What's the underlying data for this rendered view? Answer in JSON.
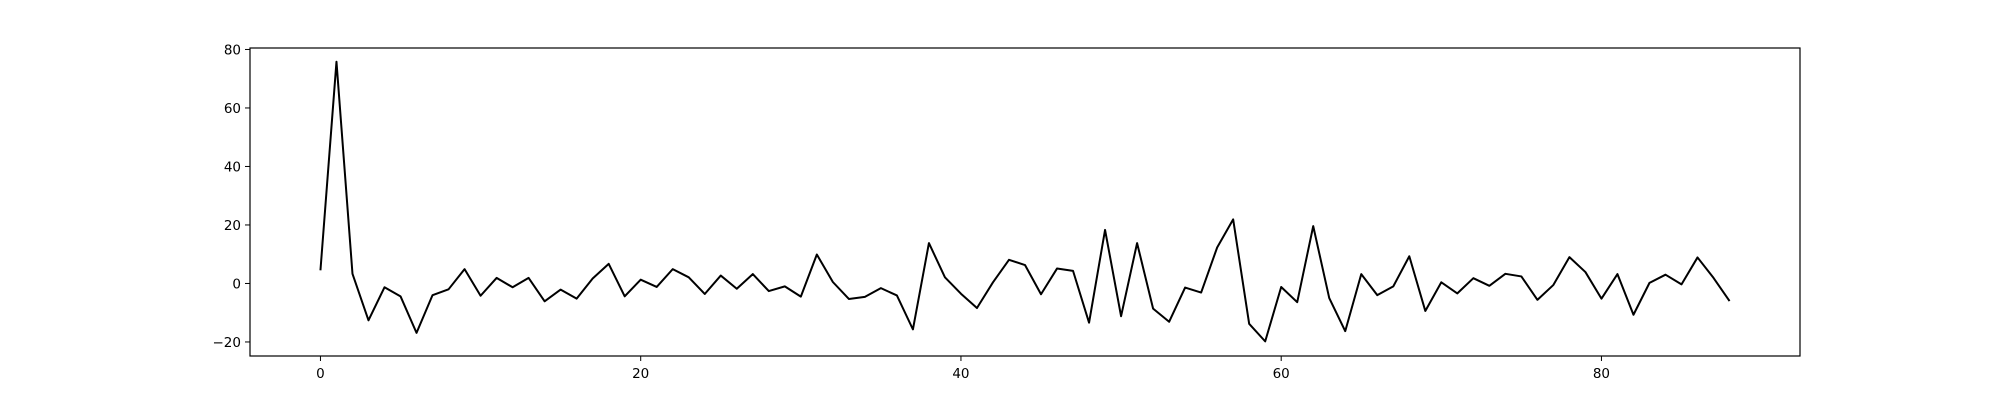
{
  "chart_data": {
    "type": "line",
    "title": "",
    "xlabel": "",
    "ylabel": "",
    "xlim": [
      -4.4,
      92.4
    ],
    "ylim": [
      -24.8,
      80.5
    ],
    "x_ticks": [
      0,
      20,
      40,
      60,
      80
    ],
    "y_ticks": [
      -20,
      0,
      20,
      40,
      60,
      80
    ],
    "x_tick_labels": [
      "0",
      "20",
      "40",
      "60",
      "80"
    ],
    "y_tick_labels": [
      "−20",
      "0",
      "20",
      "40",
      "60",
      "80"
    ],
    "grid": false,
    "legend": "none",
    "line_color": "#000000",
    "series": [
      {
        "x": [
          0,
          1,
          2,
          3,
          4,
          5,
          6,
          7,
          8,
          9,
          10,
          11,
          12,
          13,
          14,
          15,
          16,
          17,
          18,
          19,
          20,
          21,
          22,
          23,
          24,
          25,
          26,
          27,
          28,
          29,
          30,
          31,
          32,
          33,
          34,
          35,
          36,
          37,
          38,
          39,
          40,
          41,
          42,
          43,
          44,
          45,
          46,
          47,
          48,
          49,
          50,
          51,
          52,
          53,
          54,
          55,
          56,
          57,
          58,
          59,
          60,
          61,
          62,
          63,
          64,
          65,
          66,
          67,
          68,
          69,
          70,
          71,
          72,
          73,
          74,
          75,
          76,
          77,
          78,
          79,
          80,
          81,
          82,
          83,
          84,
          85,
          86,
          87,
          88
        ],
        "values": [
          4.5,
          75.8,
          3.3,
          -12.6,
          -1.3,
          -4.4,
          -16.9,
          -4.0,
          -2.0,
          4.9,
          -4.2,
          1.9,
          -1.3,
          1.9,
          -6.1,
          -2.1,
          -5.2,
          1.7,
          6.7,
          -4.4,
          1.3,
          -1.2,
          4.9,
          2.1,
          -3.6,
          2.7,
          -1.8,
          3.2,
          -2.6,
          -1.0,
          -4.5,
          9.9,
          0.5,
          -5.3,
          -4.6,
          -1.6,
          -4.1,
          -15.7,
          13.8,
          2.1,
          -3.5,
          -8.4,
          0.4,
          8.1,
          6.3,
          -3.7,
          5.1,
          4.3,
          -13.4,
          18.3,
          -11.2,
          13.8,
          -8.6,
          -13.1,
          -1.4,
          -3.1,
          12.3,
          21.9,
          -13.8,
          -19.8,
          -1.2,
          -6.4,
          19.6,
          -5.0,
          -16.3,
          3.2,
          -4.0,
          -1.0,
          9.3,
          -9.4,
          0.4,
          -3.4,
          1.8,
          -0.8,
          3.3,
          2.4,
          -5.6,
          -0.5,
          9.0,
          3.9,
          -5.2,
          3.2,
          -10.7,
          0.2,
          3.0,
          -0.3,
          8.9,
          1.9,
          -6.0
        ]
      }
    ]
  }
}
